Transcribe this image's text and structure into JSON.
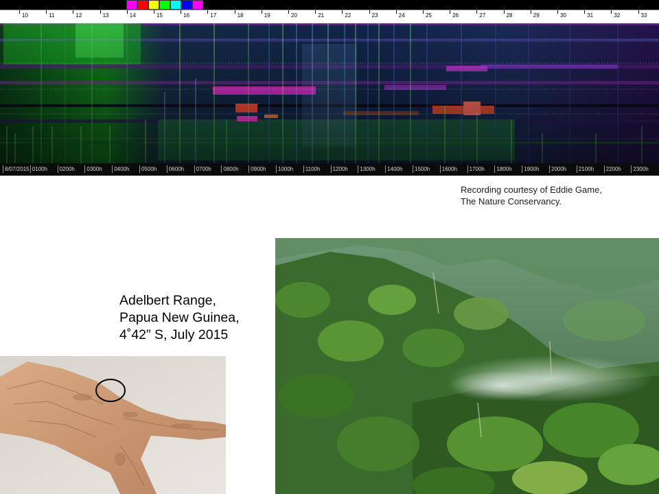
{
  "spectrogram": {
    "frequency_ticks": [
      "10",
      "11",
      "12",
      "13",
      "14",
      "15",
      "16",
      "17",
      "18",
      "19",
      "20",
      "21",
      "22",
      "23",
      "24",
      "25",
      "26",
      "27",
      "28",
      "29",
      "30",
      "31",
      "32",
      "33"
    ],
    "time_labels": [
      "8/07/2015",
      "0100h",
      "0200h",
      "0300h",
      "0400h",
      "0500h",
      "0600h",
      "0700h",
      "0800h",
      "0900h",
      "1000h",
      "1100h",
      "1200h",
      "1300h",
      "1400h",
      "1500h",
      "1600h",
      "1700h",
      "1800h",
      "1900h",
      "2000h",
      "2100h",
      "2200h",
      "2300h"
    ],
    "swatch_colors": [
      "#ff00ff",
      "#ff0000",
      "#ffff00",
      "#00ff00",
      "#00ffff",
      "#0000ff",
      "#ff00ff"
    ]
  },
  "credit": {
    "line1": "Recording courtesy of Eddie Game,",
    "line2": "The Nature Conservancy."
  },
  "location": {
    "line1": "Adelbert Range,",
    "line2": "Papua New Guinea,",
    "line3": "4˚42” S, July 2015"
  }
}
